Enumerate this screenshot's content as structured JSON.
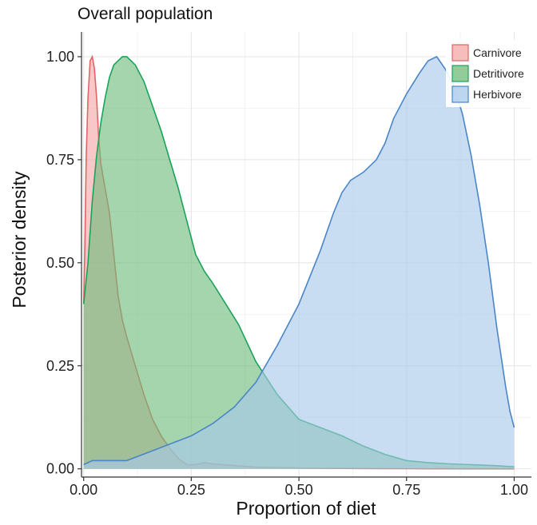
{
  "chart_data": {
    "type": "area",
    "title": "Overall population",
    "xlabel": "Proportion of diet",
    "ylabel": "Posterior density",
    "xlim": [
      -0.005,
      1.04
    ],
    "ylim": [
      -0.02,
      1.06
    ],
    "x_ticks": [
      0,
      0.25,
      0.5,
      0.75,
      1
    ],
    "x_tick_labels": [
      "0.00",
      "0.25",
      "0.50",
      "0.75",
      "1.00"
    ],
    "y_ticks": [
      0,
      0.25,
      0.5,
      0.75,
      1
    ],
    "y_tick_labels": [
      "0.00",
      "0.25",
      "0.50",
      "0.75",
      "1.00"
    ],
    "grid": true,
    "legend_position": "top-right",
    "series": [
      {
        "name": "Carnivore",
        "fill": "#f4a6a6",
        "stroke": "#e06666",
        "points": [
          [
            0,
            0.4
          ],
          [
            0.003,
            0.55
          ],
          [
            0.006,
            0.76
          ],
          [
            0.01,
            0.9
          ],
          [
            0.015,
            0.99
          ],
          [
            0.02,
            1.0
          ],
          [
            0.025,
            0.97
          ],
          [
            0.03,
            0.9
          ],
          [
            0.035,
            0.8
          ],
          [
            0.04,
            0.74
          ],
          [
            0.05,
            0.68
          ],
          [
            0.06,
            0.62
          ],
          [
            0.07,
            0.52
          ],
          [
            0.08,
            0.42
          ],
          [
            0.09,
            0.36
          ],
          [
            0.1,
            0.32
          ],
          [
            0.12,
            0.25
          ],
          [
            0.14,
            0.18
          ],
          [
            0.16,
            0.12
          ],
          [
            0.18,
            0.08
          ],
          [
            0.2,
            0.05
          ],
          [
            0.22,
            0.025
          ],
          [
            0.24,
            0.01
          ],
          [
            0.26,
            0.01
          ],
          [
            0.28,
            0.015
          ],
          [
            0.3,
            0.012
          ],
          [
            0.35,
            0.008
          ],
          [
            0.4,
            0.004
          ],
          [
            0.5,
            0.002
          ],
          [
            0.6,
            0.001
          ],
          [
            0.7,
            0.0005
          ],
          [
            0.8,
            0.0002
          ],
          [
            1,
            0
          ]
        ]
      },
      {
        "name": "Detritivore",
        "fill": "#6dbb7a",
        "stroke": "#1aa35a",
        "points": [
          [
            0,
            0.4
          ],
          [
            0.01,
            0.5
          ],
          [
            0.02,
            0.65
          ],
          [
            0.03,
            0.76
          ],
          [
            0.04,
            0.84
          ],
          [
            0.05,
            0.9
          ],
          [
            0.06,
            0.95
          ],
          [
            0.07,
            0.98
          ],
          [
            0.08,
            0.99
          ],
          [
            0.09,
            1.0
          ],
          [
            0.1,
            1.0
          ],
          [
            0.11,
            0.99
          ],
          [
            0.12,
            0.98
          ],
          [
            0.13,
            0.96
          ],
          [
            0.14,
            0.94
          ],
          [
            0.15,
            0.91
          ],
          [
            0.16,
            0.88
          ],
          [
            0.18,
            0.82
          ],
          [
            0.2,
            0.75
          ],
          [
            0.22,
            0.68
          ],
          [
            0.24,
            0.6
          ],
          [
            0.26,
            0.52
          ],
          [
            0.28,
            0.48
          ],
          [
            0.3,
            0.45
          ],
          [
            0.33,
            0.4
          ],
          [
            0.36,
            0.35
          ],
          [
            0.4,
            0.26
          ],
          [
            0.45,
            0.18
          ],
          [
            0.5,
            0.12
          ],
          [
            0.55,
            0.1
          ],
          [
            0.6,
            0.08
          ],
          [
            0.65,
            0.055
          ],
          [
            0.7,
            0.035
          ],
          [
            0.75,
            0.02
          ],
          [
            0.8,
            0.015
          ],
          [
            0.85,
            0.012
          ],
          [
            0.9,
            0.01
          ],
          [
            0.95,
            0.008
          ],
          [
            1,
            0.005
          ]
        ]
      },
      {
        "name": "Herbivore",
        "fill": "#a7c8ea",
        "stroke": "#4a86c8",
        "points": [
          [
            0,
            0.01
          ],
          [
            0.02,
            0.02
          ],
          [
            0.05,
            0.02
          ],
          [
            0.1,
            0.02
          ],
          [
            0.15,
            0.04
          ],
          [
            0.2,
            0.06
          ],
          [
            0.25,
            0.08
          ],
          [
            0.3,
            0.11
          ],
          [
            0.35,
            0.15
          ],
          [
            0.4,
            0.21
          ],
          [
            0.45,
            0.3
          ],
          [
            0.5,
            0.4
          ],
          [
            0.55,
            0.53
          ],
          [
            0.58,
            0.62
          ],
          [
            0.6,
            0.67
          ],
          [
            0.62,
            0.7
          ],
          [
            0.65,
            0.72
          ],
          [
            0.68,
            0.75
          ],
          [
            0.7,
            0.79
          ],
          [
            0.72,
            0.85
          ],
          [
            0.75,
            0.91
          ],
          [
            0.78,
            0.96
          ],
          [
            0.8,
            0.99
          ],
          [
            0.82,
            1.0
          ],
          [
            0.84,
            0.97
          ],
          [
            0.86,
            0.93
          ],
          [
            0.88,
            0.86
          ],
          [
            0.9,
            0.76
          ],
          [
            0.92,
            0.64
          ],
          [
            0.94,
            0.5
          ],
          [
            0.96,
            0.34
          ],
          [
            0.98,
            0.2
          ],
          [
            0.99,
            0.14
          ],
          [
            1,
            0.1
          ]
        ]
      }
    ]
  }
}
